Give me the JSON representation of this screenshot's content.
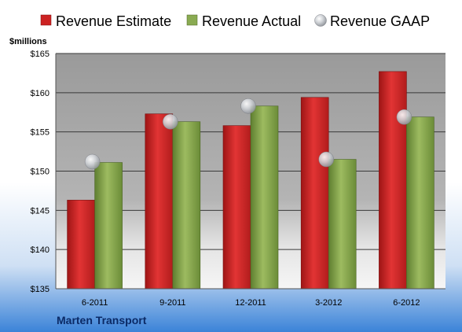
{
  "chart_data": {
    "type": "bar",
    "company": "Marten Transport",
    "unit_label": "$millions",
    "categories": [
      "6-2011",
      "9-2011",
      "12-2011",
      "3-2012",
      "6-2012"
    ],
    "series": [
      {
        "name": "Revenue Estimate",
        "kind": "bar",
        "color": "#cc2222",
        "values": [
          146.3,
          157.3,
          155.8,
          159.4,
          162.7
        ]
      },
      {
        "name": "Revenue Actual",
        "kind": "bar",
        "color": "#7fa04a",
        "values": [
          151.1,
          156.3,
          158.3,
          151.5,
          156.9
        ]
      },
      {
        "name": "Revenue GAAP",
        "kind": "marker",
        "color": "#b8bcc4",
        "values": [
          151.2,
          156.3,
          158.3,
          151.5,
          156.9
        ]
      }
    ],
    "y_ticks": [
      "$135",
      "$140",
      "$145",
      "$150",
      "$155",
      "$160",
      "$165"
    ],
    "y_tick_values": [
      135,
      140,
      145,
      150,
      155,
      160,
      165
    ],
    "ylim": [
      135,
      165
    ],
    "grid": true,
    "legend_position": "top"
  }
}
